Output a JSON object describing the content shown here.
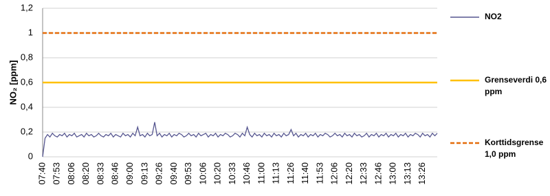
{
  "chart_data": {
    "type": "line",
    "y_label": "NO₂ [ppm]",
    "ylim": [
      0,
      1.2
    ],
    "yticks": [
      0,
      {
        "value": 0.2,
        "label": "0,2"
      },
      {
        "value": 0.4,
        "label": "0,4"
      },
      {
        "value": 0.6,
        "label": "0,6"
      },
      {
        "value": 0.8,
        "label": "0,8"
      },
      1,
      {
        "value": 1.2,
        "label": "1,2"
      }
    ],
    "grid": true,
    "legend": "right",
    "categories": [
      "07:40",
      null,
      null,
      null,
      null,
      null,
      "07:53",
      null,
      null,
      null,
      null,
      null,
      "08:06",
      null,
      null,
      null,
      null,
      null,
      "08:20",
      null,
      null,
      null,
      null,
      null,
      "08:33",
      null,
      null,
      null,
      null,
      null,
      "08:46",
      null,
      null,
      null,
      null,
      null,
      "09:00",
      null,
      null,
      null,
      null,
      null,
      "09:13",
      null,
      null,
      null,
      null,
      null,
      "09:26",
      null,
      null,
      null,
      null,
      null,
      "09:40",
      null,
      null,
      null,
      null,
      null,
      "09:53",
      null,
      null,
      null,
      null,
      null,
      "10:06",
      null,
      null,
      null,
      null,
      null,
      "10:20",
      null,
      null,
      null,
      null,
      null,
      "10:33",
      null,
      null,
      null,
      null,
      null,
      "10:46",
      null,
      null,
      null,
      null,
      null,
      "11:00",
      null,
      null,
      null,
      null,
      null,
      "11:13",
      null,
      null,
      null,
      null,
      null,
      "11:26",
      null,
      null,
      null,
      null,
      null,
      "11:40",
      null,
      null,
      null,
      null,
      null,
      "11:53",
      null,
      null,
      null,
      null,
      null,
      "12:06",
      null,
      null,
      null,
      null,
      null,
      "12:20",
      null,
      null,
      null,
      null,
      null,
      "12:33",
      null,
      null,
      null,
      null,
      null,
      "12:46",
      null,
      null,
      null,
      null,
      null,
      "13:00",
      null,
      null,
      null,
      null,
      null,
      "13:13",
      null,
      null,
      null,
      null,
      null,
      "13:26",
      null,
      null,
      null,
      null,
      null,
      null
    ],
    "series": [
      {
        "name": "NO2",
        "color": "#55558f",
        "values": [
          0,
          0.15,
          0.18,
          0.16,
          0.19,
          0.17,
          0.16,
          0.18,
          0.17,
          0.19,
          0.16,
          0.18,
          0.17,
          0.19,
          0.16,
          0.17,
          0.18,
          0.16,
          0.19,
          0.17,
          0.18,
          0.16,
          0.17,
          0.19,
          0.17,
          0.16,
          0.18,
          0.17,
          0.19,
          0.16,
          0.18,
          0.17,
          0.16,
          0.19,
          0.17,
          0.18,
          0.16,
          0.19,
          0.17,
          0.24,
          0.17,
          0.18,
          0.16,
          0.19,
          0.17,
          0.18,
          0.28,
          0.17,
          0.19,
          0.16,
          0.18,
          0.17,
          0.19,
          0.16,
          0.18,
          0.17,
          0.19,
          0.18,
          0.16,
          0.17,
          0.19,
          0.17,
          0.18,
          0.16,
          0.19,
          0.17,
          0.18,
          0.19,
          0.16,
          0.18,
          0.17,
          0.19,
          0.16,
          0.18,
          0.17,
          0.19,
          0.18,
          0.16,
          0.17,
          0.19,
          0.18,
          0.16,
          0.19,
          0.17,
          0.24,
          0.18,
          0.16,
          0.19,
          0.17,
          0.18,
          0.16,
          0.19,
          0.17,
          0.18,
          0.16,
          0.19,
          0.17,
          0.18,
          0.16,
          0.19,
          0.17,
          0.18,
          0.22,
          0.17,
          0.19,
          0.16,
          0.18,
          0.17,
          0.19,
          0.16,
          0.18,
          0.17,
          0.19,
          0.16,
          0.18,
          0.17,
          0.19,
          0.18,
          0.16,
          0.17,
          0.19,
          0.17,
          0.18,
          0.16,
          0.19,
          0.17,
          0.18,
          0.16,
          0.19,
          0.17,
          0.18,
          0.16,
          0.17,
          0.19,
          0.16,
          0.18,
          0.17,
          0.19,
          0.16,
          0.18,
          0.17,
          0.19,
          0.16,
          0.18,
          0.17,
          0.19,
          0.16,
          0.18,
          0.17,
          0.19,
          0.16,
          0.18,
          0.17,
          0.19,
          0.18,
          0.16,
          0.19,
          0.17,
          0.18,
          0.16,
          0.19,
          0.17,
          0.19
        ]
      }
    ],
    "reference_lines": [
      {
        "name": "Grenseverdi 0,6 ppm",
        "value": 0.6,
        "color": "#ffc000",
        "dashed": false
      },
      {
        "name": "Korttidsgrense 1,0 ppm",
        "value": 1,
        "color": "#e46c0a",
        "dashed": true
      }
    ]
  }
}
